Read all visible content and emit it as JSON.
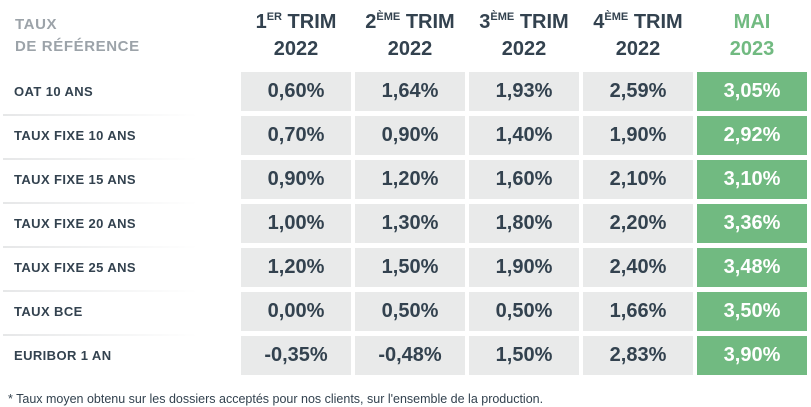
{
  "chart_data": {
    "type": "table",
    "title": "Taux de référence",
    "columns": [
      "1er trim 2022",
      "2ème trim 2022",
      "3ème trim 2022",
      "4ème trim 2022",
      "Mai 2023"
    ],
    "highlight_column": "Mai 2023",
    "unit": "percent",
    "rows": [
      {
        "label": "OAT 10 ans",
        "values": [
          0.6,
          1.64,
          1.93,
          2.59,
          3.05
        ]
      },
      {
        "label": "Taux fixe 10 ans",
        "values": [
          0.7,
          0.9,
          1.4,
          1.9,
          2.92
        ]
      },
      {
        "label": "Taux fixe 15 ans",
        "values": [
          0.9,
          1.2,
          1.6,
          2.1,
          3.1
        ]
      },
      {
        "label": "Taux fixe 20 ans",
        "values": [
          1.0,
          1.3,
          1.8,
          2.2,
          3.36
        ]
      },
      {
        "label": "Taux fixe 25 ans",
        "values": [
          1.2,
          1.5,
          1.9,
          2.4,
          3.48
        ]
      },
      {
        "label": "Taux BCE",
        "values": [
          0.0,
          0.5,
          0.5,
          1.66,
          3.5
        ]
      },
      {
        "label": "Euribor 1 an",
        "values": [
          -0.35,
          -0.48,
          1.5,
          2.83,
          3.9
        ]
      }
    ],
    "footnote": "* Taux moyen obtenu sur les dossiers acceptés pour nos clients, sur l'ensemble de la production."
  },
  "table": {
    "title_line1": "TAUX",
    "title_line2": "DE RÉFÉRENCE",
    "columns": [
      {
        "num": "1",
        "sup": "ER",
        "rest": " TRIM",
        "year": "2022"
      },
      {
        "num": "2",
        "sup": "ÈME",
        "rest": " TRIM",
        "year": "2022"
      },
      {
        "num": "3",
        "sup": "ÈME",
        "rest": " TRIM",
        "year": "2022"
      },
      {
        "num": "4",
        "sup": "ÈME",
        "rest": " TRIM",
        "year": "2022"
      },
      {
        "num": "MAI",
        "sup": "",
        "rest": "",
        "year": "2023"
      }
    ],
    "rows": [
      {
        "label": "OAT 10 ANS",
        "values": [
          "0,60%",
          "1,64%",
          "1,93%",
          "2,59%",
          "3,05%"
        ]
      },
      {
        "label": "TAUX FIXE 10 ANS",
        "values": [
          "0,70%",
          "0,90%",
          "1,40%",
          "1,90%",
          "2,92%"
        ]
      },
      {
        "label": "TAUX FIXE 15 ANS",
        "values": [
          "0,90%",
          "1,20%",
          "1,60%",
          "2,10%",
          "3,10%"
        ]
      },
      {
        "label": "TAUX FIXE 20 ANS",
        "values": [
          "1,00%",
          "1,30%",
          "1,80%",
          "2,20%",
          "3,36%"
        ]
      },
      {
        "label": "TAUX FIXE 25 ANS",
        "values": [
          "1,20%",
          "1,50%",
          "1,90%",
          "2,40%",
          "3,48%"
        ]
      },
      {
        "label": "TAUX BCE",
        "values": [
          "0,00%",
          "0,50%",
          "0,50%",
          "1,66%",
          "3,50%"
        ]
      },
      {
        "label": "EURIBOR 1 AN",
        "values": [
          "-0,35%",
          "-0,48%",
          "1,50%",
          "2,83%",
          "3,90%"
        ]
      }
    ],
    "footnote": "* Taux moyen obtenu sur les dossiers acceptés pour nos clients, sur l'ensemble de la production.",
    "colors": {
      "accent_green": "#71ba81",
      "cell_gray": "#e9eaea",
      "text_navy": "#33424f",
      "title_gray": "#9ca3a9",
      "value_on_green": "#ffffff"
    }
  }
}
